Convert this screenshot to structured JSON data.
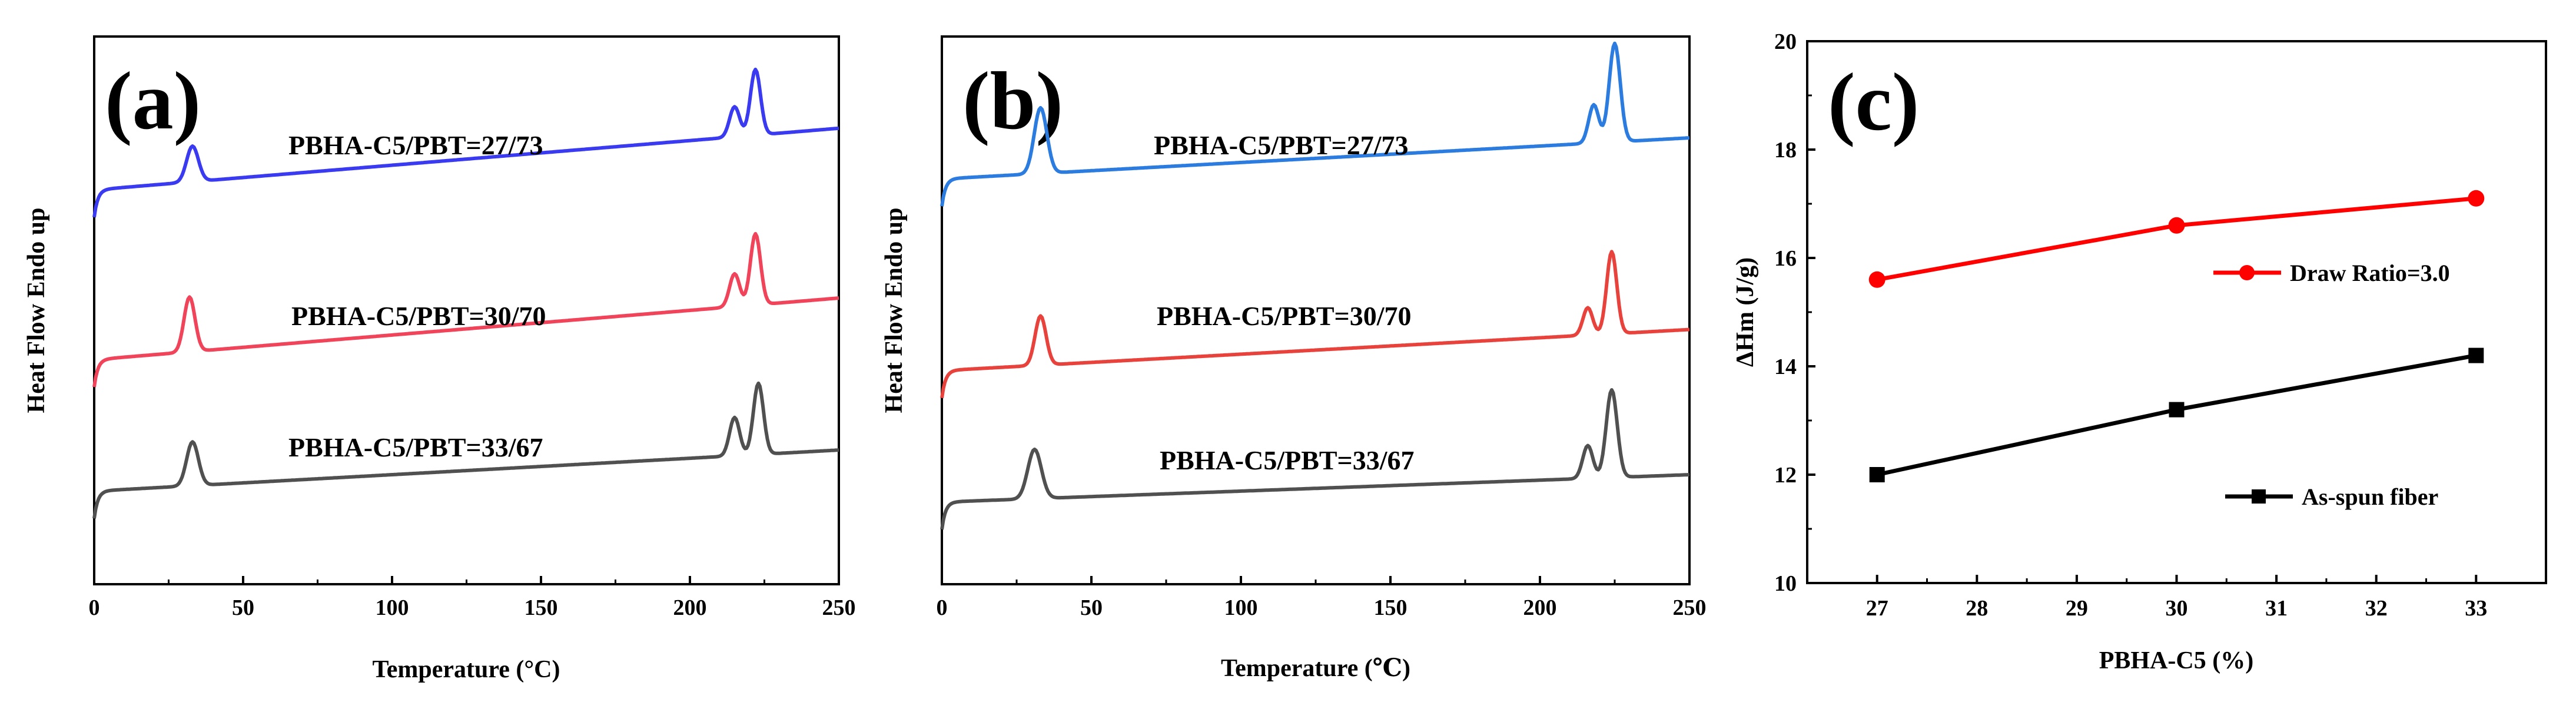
{
  "chart_data": [
    {
      "type": "line",
      "panel": "(a)",
      "xlabel": "Temperature (°C)",
      "ylabel": "Heat Flow Endo up",
      "xlim": [
        0,
        250
      ],
      "xticks": [
        "0",
        "50",
        "100",
        "150",
        "200",
        "250"
      ],
      "series": [
        {
          "name": "PBHA-C5/PBT=27/73",
          "color": "#3a3af0",
          "baseline": 0.72,
          "slope": 0.00045,
          "peaks": [
            {
              "x": 33,
              "height": 0.065,
              "width": 2.8
            },
            {
              "x": 215,
              "height": 0.055,
              "width": 2.4
            },
            {
              "x": 222,
              "height": 0.12,
              "width": 2.4
            }
          ]
        },
        {
          "name": "PBHA-C5/PBT=30/70",
          "color": "#f0445a",
          "baseline": 0.41,
          "slope": 0.00045,
          "peaks": [
            {
              "x": 32,
              "height": 0.1,
              "width": 2.6
            },
            {
              "x": 215,
              "height": 0.06,
              "width": 2.4
            },
            {
              "x": 222,
              "height": 0.13,
              "width": 2.4
            }
          ]
        },
        {
          "name": "PBHA-C5/PBT=33/67",
          "color": "#505050",
          "baseline": 0.17,
          "slope": 0.0003,
          "peaks": [
            {
              "x": 33,
              "height": 0.08,
              "width": 2.8
            },
            {
              "x": 215,
              "height": 0.07,
              "width": 2.4
            },
            {
              "x": 223,
              "height": 0.13,
              "width": 2.4
            }
          ]
        }
      ]
    },
    {
      "type": "line",
      "panel": "(b)",
      "xlabel": "Temperature (℃)",
      "ylabel": "Heat Flow Endo up",
      "xlim": [
        0,
        250
      ],
      "xticks": [
        "0",
        "50",
        "100",
        "150",
        "200",
        "250"
      ],
      "series": [
        {
          "name": "PBHA-C5/PBT=27/73",
          "color": "#2c7ce0",
          "baseline": 0.74,
          "slope": 0.0003,
          "peaks": [
            {
              "x": 33,
              "height": 0.12,
              "width": 3.0
            },
            {
              "x": 218,
              "height": 0.07,
              "width": 2.4
            },
            {
              "x": 225,
              "height": 0.18,
              "width": 2.6
            }
          ]
        },
        {
          "name": "PBHA-C5/PBT=30/70",
          "color": "#e8423c",
          "baseline": 0.39,
          "slope": 0.0003,
          "peaks": [
            {
              "x": 33,
              "height": 0.09,
              "width": 2.6
            },
            {
              "x": 216,
              "height": 0.05,
              "width": 2.3
            },
            {
              "x": 224,
              "height": 0.15,
              "width": 2.4
            }
          ]
        },
        {
          "name": "PBHA-C5/PBT=33/67",
          "color": "#505050",
          "baseline": 0.15,
          "slope": 0.0002,
          "peaks": [
            {
              "x": 31,
              "height": 0.09,
              "width": 3.2
            },
            {
              "x": 216,
              "height": 0.06,
              "width": 2.4
            },
            {
              "x": 224,
              "height": 0.16,
              "width": 2.6
            }
          ]
        }
      ]
    },
    {
      "type": "line",
      "panel": "(c)",
      "xlabel": "PBHA-C5 (%)",
      "ylabel": "ΔHm (J/g)",
      "xlim": [
        26.3,
        33.7
      ],
      "ylim": [
        10,
        20
      ],
      "xticks": [
        27,
        28,
        29,
        30,
        31,
        32,
        33
      ],
      "yticks": [
        10,
        12,
        14,
        16,
        18,
        20
      ],
      "series": [
        {
          "name": "Draw Ratio=3.0",
          "color": "#ff0000",
          "marker": "circle",
          "x": [
            27,
            30,
            33
          ],
          "values": [
            15.6,
            16.6,
            17.1
          ]
        },
        {
          "name": "As-spun fiber",
          "color": "#000000",
          "marker": "square",
          "x": [
            27,
            30,
            33
          ],
          "values": [
            12.0,
            13.2,
            14.2
          ]
        }
      ]
    }
  ]
}
